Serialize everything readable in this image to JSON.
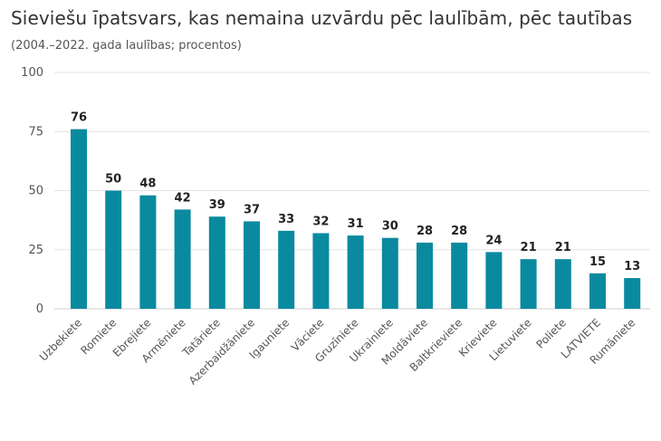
{
  "chart_data": {
    "type": "bar",
    "title": "Sieviešu īpatsvars, kas nemaina uzvārdu pēc laulībām, pēc tautības",
    "subtitle": "(2004.–2022. gada laulības; procentos)",
    "xlabel": "",
    "ylabel": "",
    "ylim": [
      0,
      100
    ],
    "yticks": [
      0,
      25,
      50,
      75,
      100
    ],
    "grid": true,
    "legend": "none",
    "bar_color": "#0a8a9f",
    "categories": [
      "Uzbekiete",
      "Romiete",
      "Ebrejiete",
      "Armēniete",
      "Tatāriete",
      "Azerbaidžāniete",
      "Igauniete",
      "Vāciete",
      "Gruzīniete",
      "Ukrainiete",
      "Moldāviete",
      "Baltkrieviete",
      "Krieviete",
      "Lietuviete",
      "Poliete",
      "LATVIETE",
      "Rumāniete"
    ],
    "values": [
      76,
      50,
      48,
      42,
      39,
      37,
      33,
      32,
      31,
      30,
      28,
      28,
      24,
      21,
      21,
      15,
      13
    ]
  }
}
